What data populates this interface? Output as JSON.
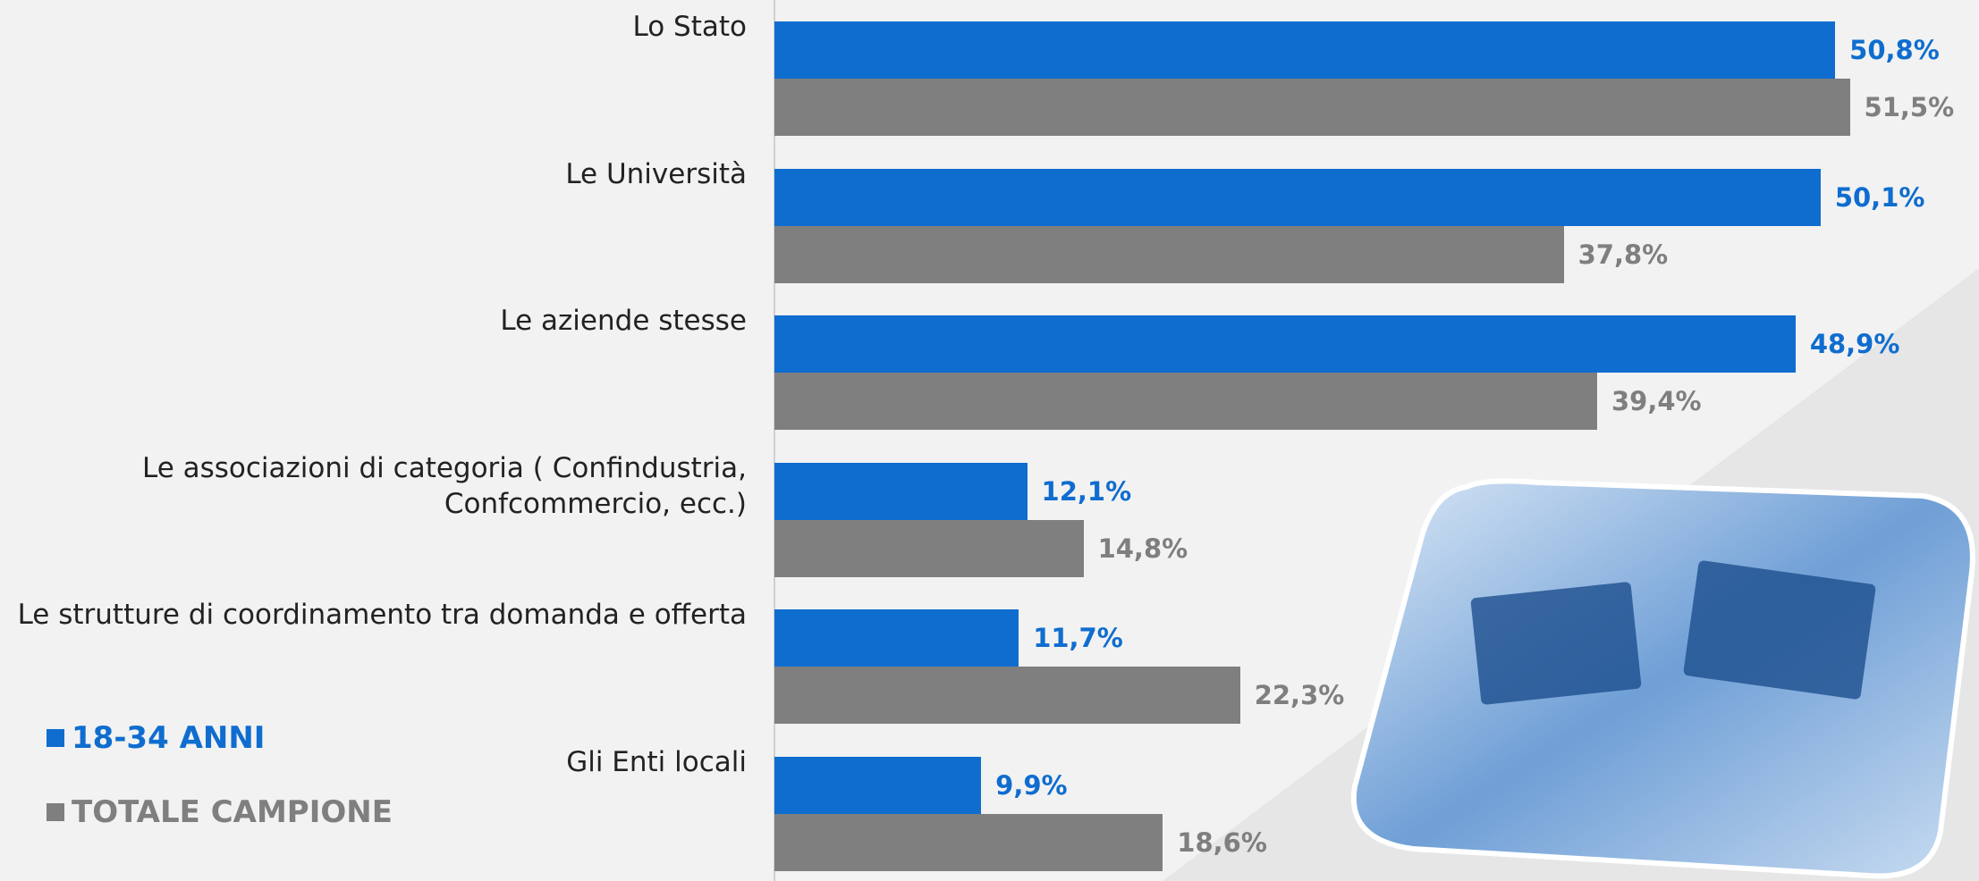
{
  "chart_data": {
    "type": "bar",
    "orientation": "horizontal",
    "categories": [
      "Lo Stato",
      "Le Università",
      "Le aziende stesse",
      "Le associazioni di categoria ( Confindustria, Confcommercio, ecc.)",
      "Le strutture di coordinamento tra domanda e offerta",
      "Gli Enti locali"
    ],
    "series": [
      {
        "name": "18-34 ANNI",
        "color": "#0f6dcf",
        "values": [
          50.8,
          50.1,
          48.9,
          12.1,
          11.7,
          9.9
        ],
        "value_labels": [
          "50,8%",
          "50,1%",
          "48,9%",
          "12,1%",
          "11,7%",
          "9,9%"
        ]
      },
      {
        "name": "TOTALE CAMPIONE",
        "color": "#7f7f7f",
        "values": [
          51.5,
          37.8,
          39.4,
          14.8,
          22.3,
          18.6
        ],
        "value_labels": [
          "51,5%",
          "37,8%",
          "39,4%",
          "14,8%",
          "22,3%",
          "18,6%"
        ]
      }
    ],
    "legend": "bottom-left"
  }
}
